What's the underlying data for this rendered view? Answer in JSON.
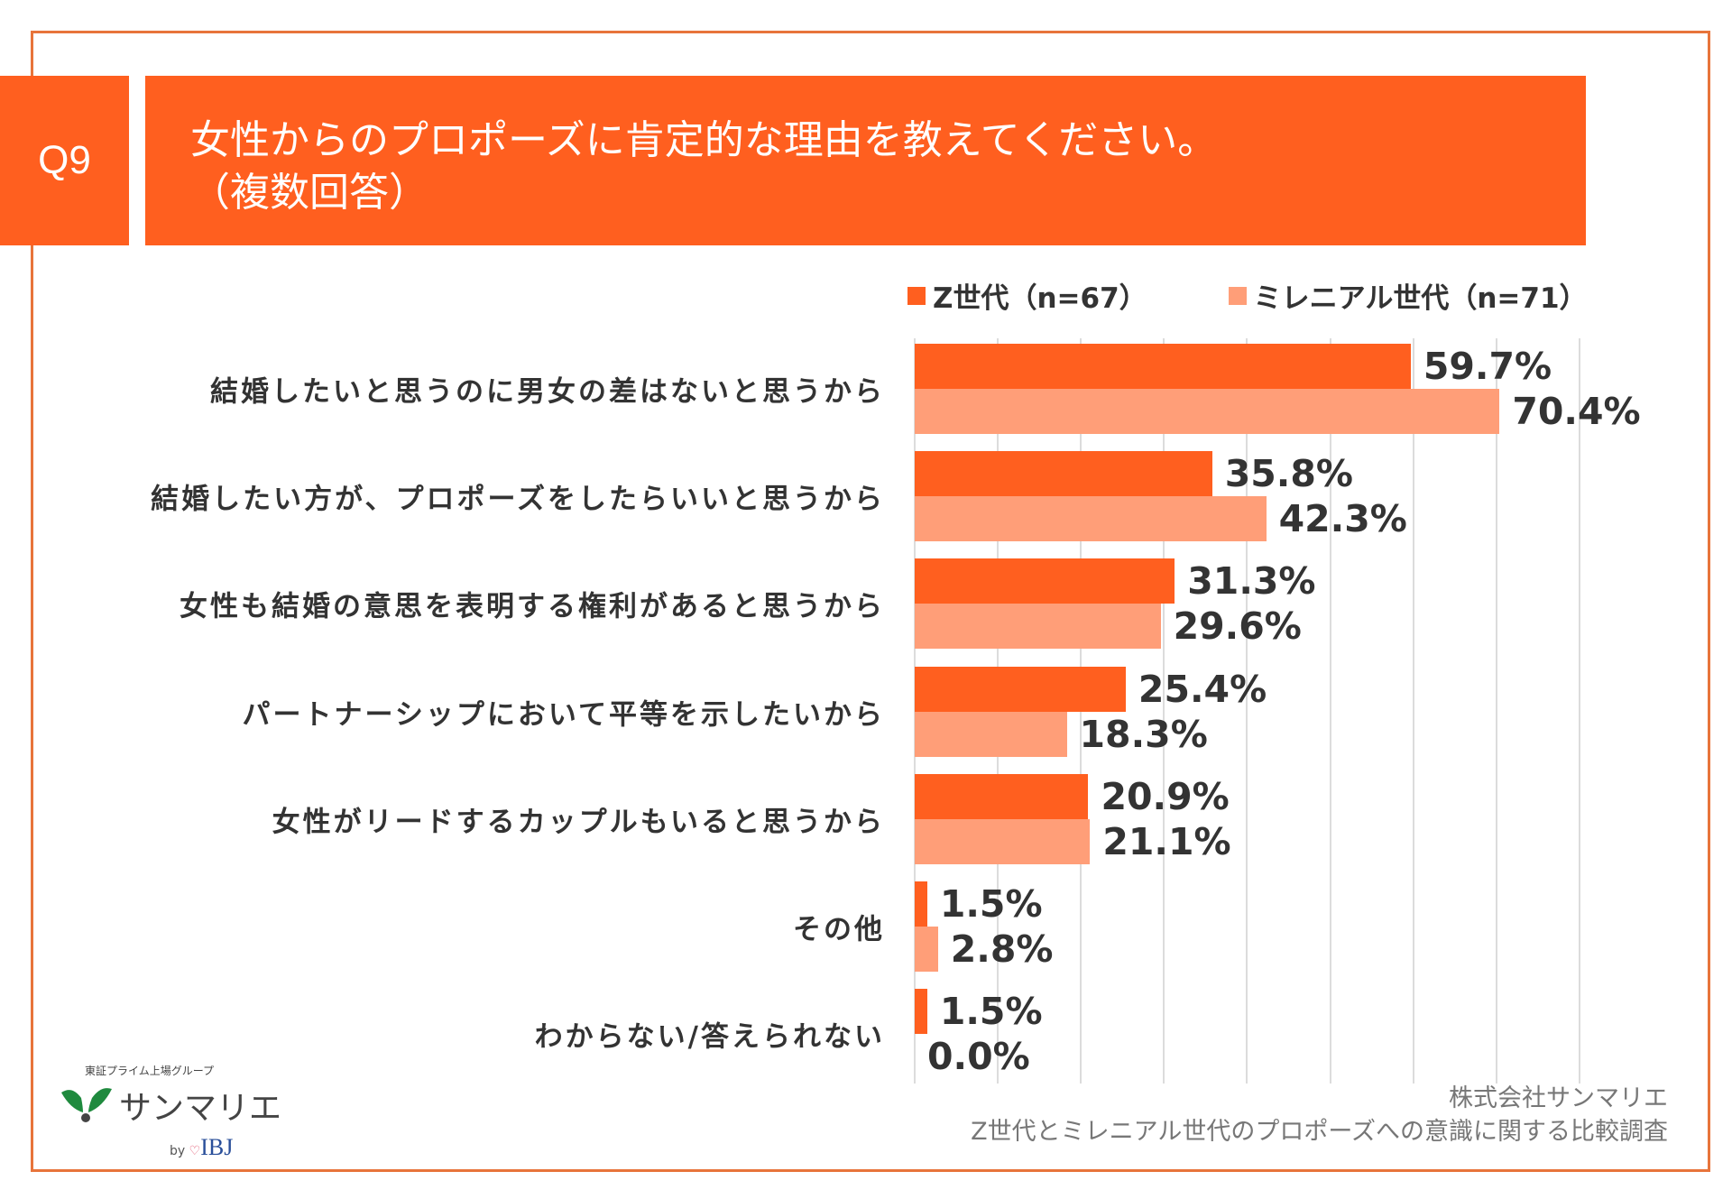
{
  "header": {
    "q_label": "Q9",
    "title_line1": "女性からのプロポーズに肯定的な理由を教えてください。",
    "title_line2": "（複数回答）"
  },
  "colors": {
    "accent": "#FF5F1F",
    "gen_z": "#FF5F1F",
    "millennial": "#FF9E78",
    "frame": "#E8743B"
  },
  "chart_data": {
    "type": "bar",
    "orientation": "horizontal",
    "categories": [
      "結婚したいと思うのに男女の差はないと思うから",
      "結婚したい方が、プロポーズをしたらいいと思うから",
      "女性も結婚の意思を表明する権利があると思うから",
      "パートナーシップにおいて平等を示したいから",
      "女性がリードするカップルもいると思うから",
      "その他",
      "わからない/答えられない"
    ],
    "series": [
      {
        "name": "Z世代（n=67）",
        "values": [
          59.7,
          35.8,
          31.3,
          25.4,
          20.9,
          1.5,
          1.5
        ],
        "labels": [
          "59.7%",
          "35.8%",
          "31.3%",
          "25.4%",
          "20.9%",
          "1.5%",
          "1.5%"
        ]
      },
      {
        "name": "ミレニアル世代（n=71）",
        "values": [
          70.4,
          42.3,
          29.6,
          18.3,
          21.1,
          2.8,
          0.0
        ],
        "labels": [
          "70.4%",
          "42.3%",
          "29.6%",
          "18.3%",
          "21.1%",
          "2.8%",
          "0.0%"
        ]
      }
    ],
    "xlim": [
      0,
      80
    ],
    "grid": true,
    "legend": "top",
    "unit": "%"
  },
  "source": {
    "line1": "株式会社サンマリエ",
    "line2": "Z世代とミレニアル世代のプロポーズへの意識に関する比較調査"
  },
  "logo": {
    "group": "東証プライム上場グループ",
    "name": "サンマリエ",
    "by": "by",
    "brand": "IBJ"
  }
}
